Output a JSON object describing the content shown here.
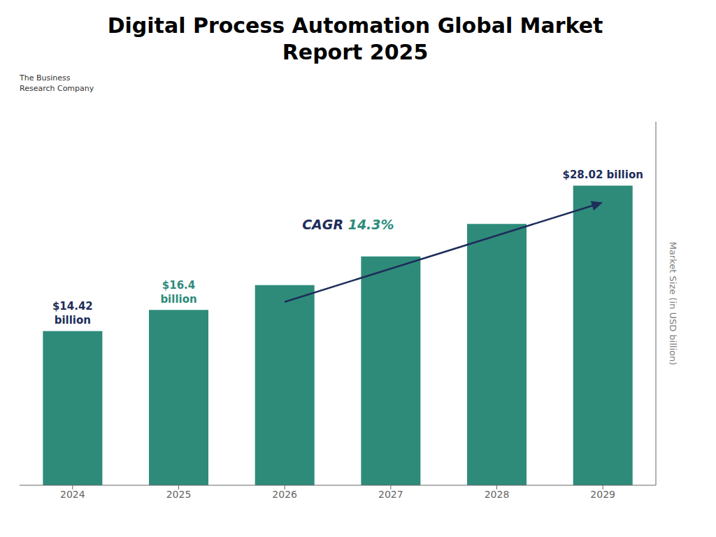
{
  "chart_data": {
    "type": "bar",
    "title": "Digital Process Automation Global Market\nReport 2025",
    "categories": [
      "2024",
      "2025",
      "2026",
      "2027",
      "2028",
      "2029"
    ],
    "values": [
      14.42,
      16.4,
      18.72,
      21.39,
      24.44,
      28.02
    ],
    "color": "#2e8b7a",
    "ylabel": "Market Size (in USD billion)",
    "ylim": [
      0,
      34
    ],
    "tick_labels": "x",
    "annotations": [
      {
        "text": "$14.42\nbillion",
        "category": "2024",
        "color": "#1e2d5a"
      },
      {
        "text": "$16.4\nbillion",
        "category": "2025",
        "color": "#2e8b7a"
      },
      {
        "text": "$28.02 billion",
        "category": "2029",
        "color": "#1e2d5a"
      },
      {
        "text": "The Business\nResearch Company",
        "color": "#333333"
      },
      {
        "parts": [
          {
            "text": "CAGR ",
            "color": "#1e2d5a"
          },
          {
            "text": "14.3%",
            "color": "#2e8b7a"
          }
        ],
        "arrow": {
          "from": "2026",
          "to": "2029",
          "color": "#1e2d5a"
        }
      }
    ]
  }
}
